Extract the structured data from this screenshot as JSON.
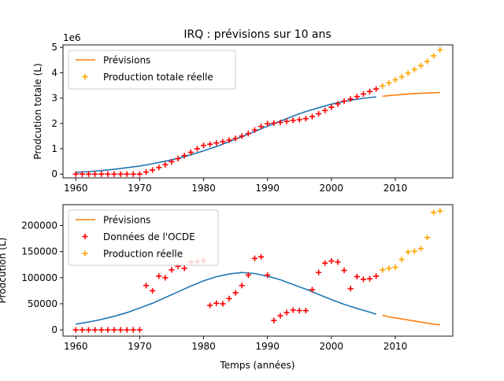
{
  "figure": {
    "title": "IRQ : prévisions sur 10 ans",
    "xlabel": "Temps (années)"
  },
  "colors": {
    "fit": "#1f77b4",
    "forecast": "#ff7f0e",
    "real": "#ffa500",
    "oecd": "#ff0000"
  },
  "chart_data": [
    {
      "type": "line",
      "title": "IRQ : prévisions sur 10 ans",
      "ylabel": "Prodcution totale (L)",
      "offset_label": "1e6",
      "xlim": [
        1958,
        2019
      ],
      "ylim": [
        -0.15,
        5.1
      ],
      "xticks": [
        1960,
        1970,
        1980,
        1990,
        2000,
        2010
      ],
      "yticks": [
        0,
        1,
        2,
        3,
        4,
        5
      ],
      "legend_position": "upper-left",
      "legend": [
        {
          "label": "Prévisions",
          "kind": "line",
          "color": "#ff7f0e"
        },
        {
          "label": "Production totale réelle",
          "kind": "plus",
          "color": "#ffa500"
        }
      ],
      "series": [
        {
          "kind": "line",
          "color": "#1f77b4",
          "x": [
            1960,
            1962,
            1964,
            1966,
            1968,
            1970,
            1972,
            1974,
            1976,
            1978,
            1980,
            1982,
            1984,
            1986,
            1988,
            1990,
            1992,
            1994,
            1996,
            1998,
            2000,
            2002,
            2004,
            2006,
            2007
          ],
          "y": [
            0.07,
            0.1,
            0.14,
            0.19,
            0.25,
            0.32,
            0.41,
            0.51,
            0.62,
            0.76,
            0.92,
            1.09,
            1.28,
            1.48,
            1.68,
            1.89,
            2.09,
            2.29,
            2.47,
            2.62,
            2.76,
            2.87,
            2.96,
            3.02,
            3.05
          ]
        },
        {
          "kind": "line",
          "color": "#ff7f0e",
          "x": [
            2008,
            2009,
            2010,
            2011,
            2012,
            2013,
            2014,
            2015,
            2016,
            2017
          ],
          "y": [
            3.07,
            3.1,
            3.12,
            3.14,
            3.16,
            3.18,
            3.19,
            3.2,
            3.21,
            3.22
          ]
        },
        {
          "kind": "plus",
          "color": "#ff0000",
          "x": [
            1960,
            1961,
            1962,
            1963,
            1964,
            1965,
            1966,
            1967,
            1968,
            1969,
            1970,
            1971,
            1972,
            1973,
            1974,
            1975,
            1976,
            1977,
            1978,
            1979,
            1980,
            1981,
            1982,
            1983,
            1984,
            1985,
            1986,
            1987,
            1988,
            1989,
            1990,
            1991,
            1992,
            1993,
            1994,
            1995,
            1996,
            1997,
            1998,
            1999,
            2000,
            2001,
            2002,
            2003,
            2004,
            2005,
            2006,
            2007
          ],
          "y": [
            0,
            0,
            0,
            0,
            0,
            0,
            0,
            0,
            0,
            0,
            0,
            0.08,
            0.16,
            0.26,
            0.37,
            0.49,
            0.61,
            0.73,
            0.86,
            1.0,
            1.13,
            1.18,
            1.23,
            1.28,
            1.34,
            1.41,
            1.5,
            1.6,
            1.74,
            1.88,
            1.99,
            2.01,
            2.04,
            2.08,
            2.12,
            2.15,
            2.19,
            2.27,
            2.38,
            2.51,
            2.64,
            2.77,
            2.88,
            2.96,
            3.06,
            3.16,
            3.26,
            3.36
          ]
        },
        {
          "kind": "plus",
          "color": "#ffa500",
          "x": [
            2008,
            2009,
            2010,
            2011,
            2012,
            2013,
            2014,
            2015,
            2016,
            2017
          ],
          "y": [
            3.48,
            3.6,
            3.72,
            3.84,
            3.98,
            4.13,
            4.28,
            4.44,
            4.67,
            4.9
          ]
        }
      ]
    },
    {
      "type": "line",
      "title": "",
      "ylabel": "Prodcution (L)",
      "xlim": [
        1958,
        2019
      ],
      "ylim": [
        -12000,
        240000
      ],
      "xticks": [
        1960,
        1970,
        1980,
        1990,
        2000,
        2010
      ],
      "yticks": [
        0,
        50000,
        100000,
        150000,
        200000
      ],
      "legend_position": "upper-left",
      "legend": [
        {
          "label": "Prévisions",
          "kind": "line",
          "color": "#ff7f0e"
        },
        {
          "label": "Données de l'OCDE",
          "kind": "plus",
          "color": "#ff0000"
        },
        {
          "label": "Production réelle",
          "kind": "plus",
          "color": "#ffa500"
        }
      ],
      "series": [
        {
          "kind": "line",
          "color": "#1f77b4",
          "x": [
            1960,
            1962,
            1964,
            1966,
            1968,
            1970,
            1972,
            1974,
            1976,
            1978,
            1980,
            1982,
            1984,
            1986,
            1988,
            1990,
            1992,
            1994,
            1996,
            1998,
            2000,
            2002,
            2004,
            2006,
            2007
          ],
          "y": [
            11000,
            15000,
            20000,
            26000,
            33000,
            42000,
            51000,
            62000,
            73000,
            84000,
            94000,
            102000,
            107000,
            110000,
            108000,
            103000,
            96000,
            87000,
            78000,
            68000,
            58000,
            49000,
            41000,
            34000,
            30000
          ]
        },
        {
          "kind": "line",
          "color": "#ff7f0e",
          "x": [
            2008,
            2009,
            2010,
            2011,
            2012,
            2013,
            2014,
            2015,
            2016,
            2017
          ],
          "y": [
            28000,
            25000,
            23000,
            21000,
            19000,
            17000,
            15000,
            13000,
            11000,
            9500
          ]
        },
        {
          "kind": "plus",
          "color": "#ff0000",
          "x": [
            1960,
            1961,
            1962,
            1963,
            1964,
            1965,
            1966,
            1967,
            1968,
            1969,
            1970,
            1971,
            1972,
            1973,
            1974,
            1975,
            1976,
            1977,
            1978,
            1979,
            1980,
            1981,
            1982,
            1983,
            1984,
            1985,
            1986,
            1987,
            1988,
            1989,
            1990,
            1991,
            1992,
            1993,
            1994,
            1995,
            1996,
            1997,
            1998,
            1999,
            2000,
            2001,
            2002,
            2003,
            2004,
            2005,
            2006,
            2007
          ],
          "y": [
            0,
            0,
            0,
            0,
            0,
            0,
            0,
            0,
            0,
            0,
            0,
            85000,
            75000,
            103000,
            100000,
            115000,
            122000,
            118000,
            130000,
            131000,
            133000,
            47000,
            51000,
            50000,
            60000,
            71000,
            85000,
            105000,
            137000,
            140000,
            105000,
            18000,
            27000,
            33000,
            38000,
            37000,
            37000,
            77000,
            110000,
            128000,
            132000,
            130000,
            114000,
            79000,
            102000,
            97000,
            98000,
            103000
          ]
        },
        {
          "kind": "plus",
          "color": "#ffa500",
          "x": [
            2008,
            2009,
            2010,
            2011,
            2012,
            2013,
            2014,
            2015,
            2016,
            2017
          ],
          "y": [
            115000,
            118000,
            120000,
            135000,
            149000,
            151000,
            156000,
            177000,
            225000,
            228000
          ]
        }
      ]
    }
  ]
}
